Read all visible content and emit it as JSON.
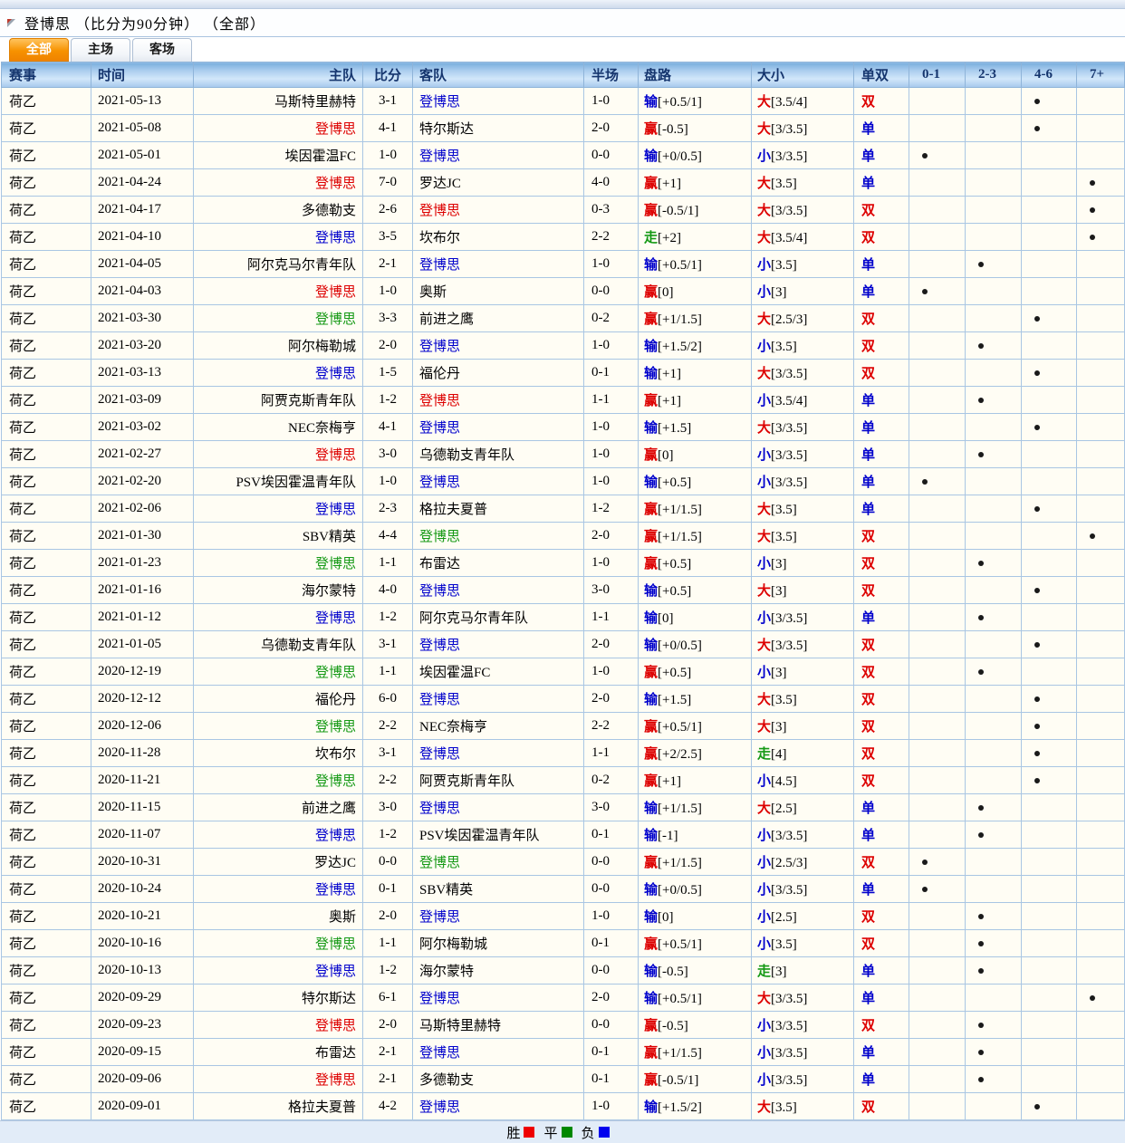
{
  "title": "登博思 （比分为90分钟） （全部）",
  "tabs": [
    {
      "label": "全部"
    },
    {
      "label": "主场"
    },
    {
      "label": "客场"
    }
  ],
  "active_tab": 0,
  "columns": [
    "赛事",
    "时间",
    "主队",
    "比分",
    "客队",
    "半场",
    "盘路",
    "大小",
    "单双",
    "0-1",
    "2-3",
    "4-6",
    "7+"
  ],
  "colors": {
    "win_red": "#dd0000",
    "draw_green": "#149914",
    "lose_blue": "#0000cc",
    "header_text": "#15356e",
    "tab_orange": "#f79200",
    "legend_red": "#ee0000",
    "legend_green": "#008800",
    "legend_blue": "#0000ee"
  },
  "legend": [
    {
      "label": "胜",
      "color": "#ee0000"
    },
    {
      "label": "平",
      "color": "#008800"
    },
    {
      "label": "负",
      "color": "#0000ee"
    }
  ],
  "rows": [
    {
      "league": "荷乙",
      "date": "2021-05-13",
      "home": "马斯特里赫特",
      "score": "3-1",
      "away": "登博思",
      "side": "away",
      "res": "L",
      "half": "1-0",
      "hr": "输",
      "hl": "[+0.5/1]",
      "or": "大",
      "ol": "[3.5/4]",
      "oe": "双",
      "dot": "4-6"
    },
    {
      "league": "荷乙",
      "date": "2021-05-08",
      "home": "登博思",
      "score": "4-1",
      "away": "特尔斯达",
      "side": "home",
      "res": "W",
      "half": "2-0",
      "hr": "赢",
      "hl": "[-0.5]",
      "or": "大",
      "ol": "[3/3.5]",
      "oe": "单",
      "dot": "4-6"
    },
    {
      "league": "荷乙",
      "date": "2021-05-01",
      "home": "埃因霍温FC",
      "score": "1-0",
      "away": "登博思",
      "side": "away",
      "res": "L",
      "half": "0-0",
      "hr": "输",
      "hl": "[+0/0.5]",
      "or": "小",
      "ol": "[3/3.5]",
      "oe": "单",
      "dot": "0-1"
    },
    {
      "league": "荷乙",
      "date": "2021-04-24",
      "home": "登博思",
      "score": "7-0",
      "away": "罗达JC",
      "side": "home",
      "res": "W",
      "half": "4-0",
      "hr": "赢",
      "hl": "[+1]",
      "or": "大",
      "ol": "[3.5]",
      "oe": "单",
      "dot": "7+"
    },
    {
      "league": "荷乙",
      "date": "2021-04-17",
      "home": "多德勒支",
      "score": "2-6",
      "away": "登博思",
      "side": "away",
      "res": "W",
      "half": "0-3",
      "hr": "赢",
      "hl": "[-0.5/1]",
      "or": "大",
      "ol": "[3/3.5]",
      "oe": "双",
      "dot": "7+"
    },
    {
      "league": "荷乙",
      "date": "2021-04-10",
      "home": "登博思",
      "score": "3-5",
      "away": "坎布尔",
      "side": "home",
      "res": "L",
      "half": "2-2",
      "hr": "走",
      "hl": "[+2]",
      "or": "大",
      "ol": "[3.5/4]",
      "oe": "双",
      "dot": "7+"
    },
    {
      "league": "荷乙",
      "date": "2021-04-05",
      "home": "阿尔克马尔青年队",
      "score": "2-1",
      "away": "登博思",
      "side": "away",
      "res": "L",
      "half": "1-0",
      "hr": "输",
      "hl": "[+0.5/1]",
      "or": "小",
      "ol": "[3.5]",
      "oe": "单",
      "dot": "2-3"
    },
    {
      "league": "荷乙",
      "date": "2021-04-03",
      "home": "登博思",
      "score": "1-0",
      "away": "奥斯",
      "side": "home",
      "res": "W",
      "half": "0-0",
      "hr": "赢",
      "hl": "[0]",
      "or": "小",
      "ol": "[3]",
      "oe": "单",
      "dot": "0-1"
    },
    {
      "league": "荷乙",
      "date": "2021-03-30",
      "home": "登博思",
      "score": "3-3",
      "away": "前进之鹰",
      "side": "home",
      "res": "D",
      "half": "0-2",
      "hr": "赢",
      "hl": "[+1/1.5]",
      "or": "大",
      "ol": "[2.5/3]",
      "oe": "双",
      "dot": "4-6"
    },
    {
      "league": "荷乙",
      "date": "2021-03-20",
      "home": "阿尔梅勒城",
      "score": "2-0",
      "away": "登博思",
      "side": "away",
      "res": "L",
      "half": "1-0",
      "hr": "输",
      "hl": "[+1.5/2]",
      "or": "小",
      "ol": "[3.5]",
      "oe": "双",
      "dot": "2-3"
    },
    {
      "league": "荷乙",
      "date": "2021-03-13",
      "home": "登博思",
      "score": "1-5",
      "away": "福伦丹",
      "side": "home",
      "res": "L",
      "half": "0-1",
      "hr": "输",
      "hl": "[+1]",
      "or": "大",
      "ol": "[3/3.5]",
      "oe": "双",
      "dot": "4-6"
    },
    {
      "league": "荷乙",
      "date": "2021-03-09",
      "home": "阿贾克斯青年队",
      "score": "1-2",
      "away": "登博思",
      "side": "away",
      "res": "W",
      "half": "1-1",
      "hr": "赢",
      "hl": "[+1]",
      "or": "小",
      "ol": "[3.5/4]",
      "oe": "单",
      "dot": "2-3"
    },
    {
      "league": "荷乙",
      "date": "2021-03-02",
      "home": "NEC奈梅亨",
      "score": "4-1",
      "away": "登博思",
      "side": "away",
      "res": "L",
      "half": "1-0",
      "hr": "输",
      "hl": "[+1.5]",
      "or": "大",
      "ol": "[3/3.5]",
      "oe": "单",
      "dot": "4-6"
    },
    {
      "league": "荷乙",
      "date": "2021-02-27",
      "home": "登博思",
      "score": "3-0",
      "away": "乌德勒支青年队",
      "side": "home",
      "res": "W",
      "half": "1-0",
      "hr": "赢",
      "hl": "[0]",
      "or": "小",
      "ol": "[3/3.5]",
      "oe": "单",
      "dot": "2-3"
    },
    {
      "league": "荷乙",
      "date": "2021-02-20",
      "home": "PSV埃因霍温青年队",
      "score": "1-0",
      "away": "登博思",
      "side": "away",
      "res": "L",
      "half": "1-0",
      "hr": "输",
      "hl": "[+0.5]",
      "or": "小",
      "ol": "[3/3.5]",
      "oe": "单",
      "dot": "0-1"
    },
    {
      "league": "荷乙",
      "date": "2021-02-06",
      "home": "登博思",
      "score": "2-3",
      "away": "格拉夫夏普",
      "side": "home",
      "res": "L",
      "half": "1-2",
      "hr": "赢",
      "hl": "[+1/1.5]",
      "or": "大",
      "ol": "[3.5]",
      "oe": "单",
      "dot": "4-6"
    },
    {
      "league": "荷乙",
      "date": "2021-01-30",
      "home": "SBV精英",
      "score": "4-4",
      "away": "登博思",
      "side": "away",
      "res": "D",
      "half": "2-0",
      "hr": "赢",
      "hl": "[+1/1.5]",
      "or": "大",
      "ol": "[3.5]",
      "oe": "双",
      "dot": "7+"
    },
    {
      "league": "荷乙",
      "date": "2021-01-23",
      "home": "登博思",
      "score": "1-1",
      "away": "布雷达",
      "side": "home",
      "res": "D",
      "half": "1-0",
      "hr": "赢",
      "hl": "[+0.5]",
      "or": "小",
      "ol": "[3]",
      "oe": "双",
      "dot": "2-3"
    },
    {
      "league": "荷乙",
      "date": "2021-01-16",
      "home": "海尔蒙特",
      "score": "4-0",
      "away": "登博思",
      "side": "away",
      "res": "L",
      "half": "3-0",
      "hr": "输",
      "hl": "[+0.5]",
      "or": "大",
      "ol": "[3]",
      "oe": "双",
      "dot": "4-6"
    },
    {
      "league": "荷乙",
      "date": "2021-01-12",
      "home": "登博思",
      "score": "1-2",
      "away": "阿尔克马尔青年队",
      "side": "home",
      "res": "L",
      "half": "1-1",
      "hr": "输",
      "hl": "[0]",
      "or": "小",
      "ol": "[3/3.5]",
      "oe": "单",
      "dot": "2-3"
    },
    {
      "league": "荷乙",
      "date": "2021-01-05",
      "home": "乌德勒支青年队",
      "score": "3-1",
      "away": "登博思",
      "side": "away",
      "res": "L",
      "half": "2-0",
      "hr": "输",
      "hl": "[+0/0.5]",
      "or": "大",
      "ol": "[3/3.5]",
      "oe": "双",
      "dot": "4-6"
    },
    {
      "league": "荷乙",
      "date": "2020-12-19",
      "home": "登博思",
      "score": "1-1",
      "away": "埃因霍温FC",
      "side": "home",
      "res": "D",
      "half": "1-0",
      "hr": "赢",
      "hl": "[+0.5]",
      "or": "小",
      "ol": "[3]",
      "oe": "双",
      "dot": "2-3"
    },
    {
      "league": "荷乙",
      "date": "2020-12-12",
      "home": "福伦丹",
      "score": "6-0",
      "away": "登博思",
      "side": "away",
      "res": "L",
      "half": "2-0",
      "hr": "输",
      "hl": "[+1.5]",
      "or": "大",
      "ol": "[3.5]",
      "oe": "双",
      "dot": "4-6"
    },
    {
      "league": "荷乙",
      "date": "2020-12-06",
      "home": "登博思",
      "score": "2-2",
      "away": "NEC奈梅亨",
      "side": "home",
      "res": "D",
      "half": "2-2",
      "hr": "赢",
      "hl": "[+0.5/1]",
      "or": "大",
      "ol": "[3]",
      "oe": "双",
      "dot": "4-6"
    },
    {
      "league": "荷乙",
      "date": "2020-11-28",
      "home": "坎布尔",
      "score": "3-1",
      "away": "登博思",
      "side": "away",
      "res": "L",
      "half": "1-1",
      "hr": "赢",
      "hl": "[+2/2.5]",
      "or": "走",
      "ol": "[4]",
      "oe": "双",
      "dot": "4-6"
    },
    {
      "league": "荷乙",
      "date": "2020-11-21",
      "home": "登博思",
      "score": "2-2",
      "away": "阿贾克斯青年队",
      "side": "home",
      "res": "D",
      "half": "0-2",
      "hr": "赢",
      "hl": "[+1]",
      "or": "小",
      "ol": "[4.5]",
      "oe": "双",
      "dot": "4-6"
    },
    {
      "league": "荷乙",
      "date": "2020-11-15",
      "home": "前进之鹰",
      "score": "3-0",
      "away": "登博思",
      "side": "away",
      "res": "L",
      "half": "3-0",
      "hr": "输",
      "hl": "[+1/1.5]",
      "or": "大",
      "ol": "[2.5]",
      "oe": "单",
      "dot": "2-3"
    },
    {
      "league": "荷乙",
      "date": "2020-11-07",
      "home": "登博思",
      "score": "1-2",
      "away": "PSV埃因霍温青年队",
      "side": "home",
      "res": "L",
      "half": "0-1",
      "hr": "输",
      "hl": "[-1]",
      "or": "小",
      "ol": "[3/3.5]",
      "oe": "单",
      "dot": "2-3"
    },
    {
      "league": "荷乙",
      "date": "2020-10-31",
      "home": "罗达JC",
      "score": "0-0",
      "away": "登博思",
      "side": "away",
      "res": "D",
      "half": "0-0",
      "hr": "赢",
      "hl": "[+1/1.5]",
      "or": "小",
      "ol": "[2.5/3]",
      "oe": "双",
      "dot": "0-1"
    },
    {
      "league": "荷乙",
      "date": "2020-10-24",
      "home": "登博思",
      "score": "0-1",
      "away": "SBV精英",
      "side": "home",
      "res": "L",
      "half": "0-0",
      "hr": "输",
      "hl": "[+0/0.5]",
      "or": "小",
      "ol": "[3/3.5]",
      "oe": "单",
      "dot": "0-1"
    },
    {
      "league": "荷乙",
      "date": "2020-10-21",
      "home": "奥斯",
      "score": "2-0",
      "away": "登博思",
      "side": "away",
      "res": "L",
      "half": "1-0",
      "hr": "输",
      "hl": "[0]",
      "or": "小",
      "ol": "[2.5]",
      "oe": "双",
      "dot": "2-3"
    },
    {
      "league": "荷乙",
      "date": "2020-10-16",
      "home": "登博思",
      "score": "1-1",
      "away": "阿尔梅勒城",
      "side": "home",
      "res": "D",
      "half": "0-1",
      "hr": "赢",
      "hl": "[+0.5/1]",
      "or": "小",
      "ol": "[3.5]",
      "oe": "双",
      "dot": "2-3"
    },
    {
      "league": "荷乙",
      "date": "2020-10-13",
      "home": "登博思",
      "score": "1-2",
      "away": "海尔蒙特",
      "side": "home",
      "res": "L",
      "half": "0-0",
      "hr": "输",
      "hl": "[-0.5]",
      "or": "走",
      "ol": "[3]",
      "oe": "单",
      "dot": "2-3"
    },
    {
      "league": "荷乙",
      "date": "2020-09-29",
      "home": "特尔斯达",
      "score": "6-1",
      "away": "登博思",
      "side": "away",
      "res": "L",
      "half": "2-0",
      "hr": "输",
      "hl": "[+0.5/1]",
      "or": "大",
      "ol": "[3/3.5]",
      "oe": "单",
      "dot": "7+"
    },
    {
      "league": "荷乙",
      "date": "2020-09-23",
      "home": "登博思",
      "score": "2-0",
      "away": "马斯特里赫特",
      "side": "home",
      "res": "W",
      "half": "0-0",
      "hr": "赢",
      "hl": "[-0.5]",
      "or": "小",
      "ol": "[3/3.5]",
      "oe": "双",
      "dot": "2-3"
    },
    {
      "league": "荷乙",
      "date": "2020-09-15",
      "home": "布雷达",
      "score": "2-1",
      "away": "登博思",
      "side": "away",
      "res": "L",
      "half": "0-1",
      "hr": "赢",
      "hl": "[+1/1.5]",
      "or": "小",
      "ol": "[3/3.5]",
      "oe": "单",
      "dot": "2-3"
    },
    {
      "league": "荷乙",
      "date": "2020-09-06",
      "home": "登博思",
      "score": "2-1",
      "away": "多德勒支",
      "side": "home",
      "res": "W",
      "half": "0-1",
      "hr": "赢",
      "hl": "[-0.5/1]",
      "or": "小",
      "ol": "[3/3.5]",
      "oe": "单",
      "dot": "2-3"
    },
    {
      "league": "荷乙",
      "date": "2020-09-01",
      "home": "格拉夫夏普",
      "score": "4-2",
      "away": "登博思",
      "side": "away",
      "res": "L",
      "half": "1-0",
      "hr": "输",
      "hl": "[+1.5/2]",
      "or": "大",
      "ol": "[3.5]",
      "oe": "双",
      "dot": "4-6"
    }
  ]
}
